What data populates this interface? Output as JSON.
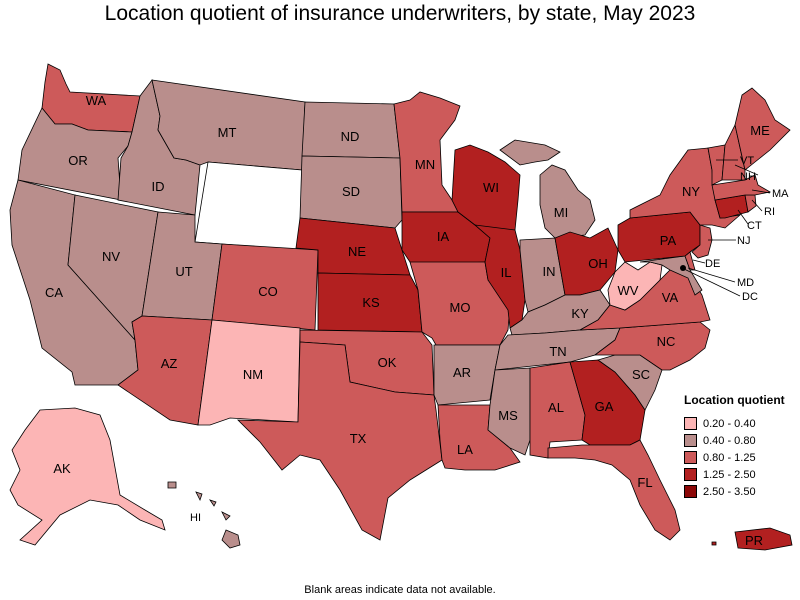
{
  "title": "Location quotient of insurance underwriters, by state, May 2023",
  "note": "Blank areas indicate data not available.",
  "colors": {
    "c1": "#fcb5b5",
    "c2": "#b98e8c",
    "c3": "#cd5a5a",
    "c4": "#b22020",
    "c5": "#8c0808",
    "na": "#ffffff"
  },
  "legend": {
    "title": "Location quotient",
    "items": [
      {
        "label": "0.20 - 0.40",
        "color": "#fcb5b5"
      },
      {
        "label": "0.40 - 0.80",
        "color": "#b98e8c"
      },
      {
        "label": "0.80 - 1.25",
        "color": "#cd5a5a"
      },
      {
        "label": "1.25 - 2.50",
        "color": "#b22020"
      },
      {
        "label": "2.50 - 3.50",
        "color": "#8c0808"
      }
    ]
  },
  "states": {
    "WA": {
      "label": "WA",
      "class": "0.80 - 1.25"
    },
    "OR": {
      "label": "OR",
      "class": "0.40 - 0.80"
    },
    "CA": {
      "label": "CA",
      "class": "0.40 - 0.80"
    },
    "NV": {
      "label": "NV",
      "class": "0.40 - 0.80"
    },
    "ID": {
      "label": "ID",
      "class": "0.40 - 0.80"
    },
    "MT": {
      "label": "MT",
      "class": "0.40 - 0.80"
    },
    "WY": {
      "label": "",
      "class": "n/a"
    },
    "UT": {
      "label": "UT",
      "class": "0.40 - 0.80"
    },
    "AZ": {
      "label": "AZ",
      "class": "0.80 - 1.25"
    },
    "CO": {
      "label": "CO",
      "class": "0.80 - 1.25"
    },
    "NM": {
      "label": "NM",
      "class": "0.20 - 0.40"
    },
    "ND": {
      "label": "ND",
      "class": "0.40 - 0.80"
    },
    "SD": {
      "label": "SD",
      "class": "0.40 - 0.80"
    },
    "NE": {
      "label": "NE",
      "class": "1.25 - 2.50"
    },
    "KS": {
      "label": "KS",
      "class": "1.25 - 2.50"
    },
    "OK": {
      "label": "OK",
      "class": "0.80 - 1.25"
    },
    "TX": {
      "label": "TX",
      "class": "0.80 - 1.25"
    },
    "MN": {
      "label": "MN",
      "class": "0.80 - 1.25"
    },
    "IA": {
      "label": "IA",
      "class": "1.25 - 2.50"
    },
    "MO": {
      "label": "MO",
      "class": "0.80 - 1.25"
    },
    "AR": {
      "label": "AR",
      "class": "0.40 - 0.80"
    },
    "LA": {
      "label": "LA",
      "class": "0.80 - 1.25"
    },
    "WI": {
      "label": "WI",
      "class": "1.25 - 2.50"
    },
    "IL": {
      "label": "IL",
      "class": "1.25 - 2.50"
    },
    "MI": {
      "label": "MI",
      "class": "0.40 - 0.80"
    },
    "IN": {
      "label": "IN",
      "class": "0.40 - 0.80"
    },
    "OH": {
      "label": "OH",
      "class": "1.25 - 2.50"
    },
    "KY": {
      "label": "KY",
      "class": "0.40 - 0.80"
    },
    "TN": {
      "label": "TN",
      "class": "0.40 - 0.80"
    },
    "MS": {
      "label": "MS",
      "class": "0.40 - 0.80"
    },
    "AL": {
      "label": "AL",
      "class": "0.80 - 1.25"
    },
    "GA": {
      "label": "GA",
      "class": "1.25 - 2.50"
    },
    "FL": {
      "label": "FL",
      "class": "0.80 - 1.25"
    },
    "SC": {
      "label": "SC",
      "class": "0.40 - 0.80"
    },
    "NC": {
      "label": "NC",
      "class": "0.80 - 1.25"
    },
    "VA": {
      "label": "VA",
      "class": "0.80 - 1.25"
    },
    "WV": {
      "label": "WV",
      "class": "0.20 - 0.40"
    },
    "PA": {
      "label": "PA",
      "class": "1.25 - 2.50"
    },
    "NY": {
      "label": "NY",
      "class": "0.80 - 1.25"
    },
    "ME": {
      "label": "ME",
      "class": "0.80 - 1.25"
    },
    "VT": {
      "label": "VT",
      "class": "0.80 - 1.25"
    },
    "NH": {
      "label": "NH",
      "class": "0.80 - 1.25"
    },
    "MA": {
      "label": "MA",
      "class": "0.80 - 1.25"
    },
    "RI": {
      "label": "RI",
      "class": "0.80 - 1.25"
    },
    "CT": {
      "label": "CT",
      "class": "1.25 - 2.50"
    },
    "NJ": {
      "label": "NJ",
      "class": "0.80 - 1.25"
    },
    "DE": {
      "label": "DE",
      "class": "0.80 - 1.25"
    },
    "MD": {
      "label": "MD",
      "class": "0.40 - 0.80"
    },
    "DC": {
      "label": "DC",
      "class": "0.40 - 0.80"
    },
    "AK": {
      "label": "AK",
      "class": "0.20 - 0.40"
    },
    "HI": {
      "label": "HI",
      "class": "0.40 - 0.80"
    },
    "PR": {
      "label": "PR",
      "class": "1.25 - 2.50"
    }
  }
}
